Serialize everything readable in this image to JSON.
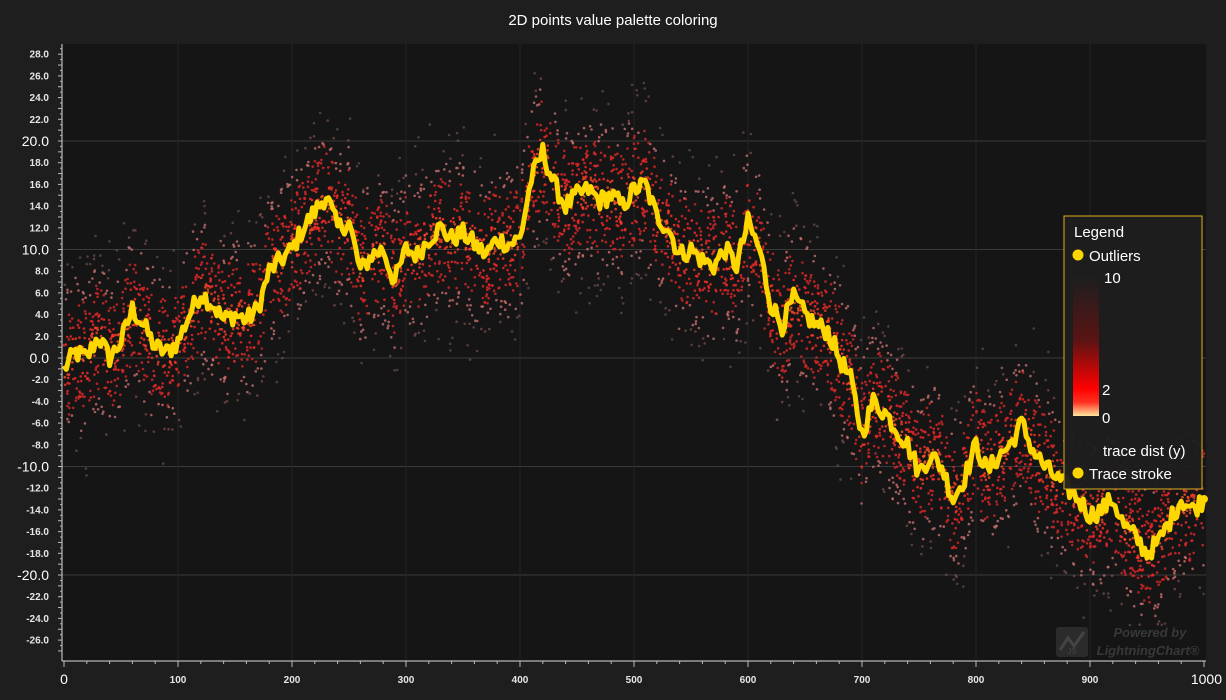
{
  "chart_data": {
    "type": "scatter",
    "title": "2D points value palette coloring",
    "xlim": [
      0,
      1000
    ],
    "ylim": [
      -28,
      29
    ],
    "x_ticks_major": [
      0,
      1000
    ],
    "x_ticks_minor": [
      100,
      200,
      300,
      400,
      500,
      600,
      700,
      800,
      900
    ],
    "y_ticks_major": [
      20.0,
      10.0,
      0.0,
      -10.0,
      -20.0
    ],
    "y_ticks_minor": [
      28.0,
      26.0,
      24.0,
      22.0,
      18.0,
      16.0,
      14.0,
      12.0,
      8.0,
      6.0,
      4.0,
      2.0,
      -2.0,
      -4.0,
      -6.0,
      -8.0,
      -12.0,
      -14.0,
      -16.0,
      -18.0,
      -22.0,
      -24.0,
      -26.0
    ],
    "grid": true,
    "series": [
      {
        "name": "Trace stroke",
        "type": "line",
        "color": "#ffd700",
        "x": [
          0,
          10,
          20,
          30,
          40,
          50,
          60,
          70,
          80,
          90,
          100,
          110,
          120,
          125,
          130,
          140,
          150,
          160,
          170,
          180,
          190,
          200,
          210,
          220,
          230,
          240,
          250,
          260,
          270,
          280,
          290,
          300,
          310,
          320,
          330,
          340,
          350,
          360,
          370,
          380,
          390,
          400,
          410,
          420,
          430,
          440,
          450,
          460,
          470,
          480,
          490,
          500,
          510,
          520,
          530,
          540,
          550,
          560,
          570,
          580,
          590,
          600,
          610,
          620,
          630,
          640,
          650,
          660,
          670,
          680,
          690,
          700,
          710,
          720,
          730,
          740,
          750,
          760,
          770,
          780,
          790,
          800,
          810,
          820,
          830,
          840,
          850,
          860,
          870,
          880,
          890,
          900,
          910,
          920,
          930,
          940,
          950,
          960,
          970,
          980,
          990,
          1000
        ],
        "y": [
          -1.0,
          0.5,
          0.0,
          2.0,
          0.0,
          1.5,
          4.5,
          3.0,
          1.0,
          0.5,
          1.5,
          4.0,
          6.0,
          5.5,
          5.0,
          3.5,
          4.0,
          3.5,
          4.5,
          8.0,
          9.0,
          10.0,
          12.0,
          13.5,
          15.0,
          12.0,
          12.5,
          8.0,
          9.5,
          10.0,
          7.0,
          10.0,
          9.5,
          11.0,
          12.0,
          11.0,
          11.5,
          10.5,
          9.5,
          11.0,
          10.5,
          11.0,
          16.5,
          19.0,
          16.0,
          14.0,
          15.0,
          15.5,
          14.5,
          15.0,
          14.0,
          15.5,
          16.0,
          13.0,
          12.0,
          9.5,
          10.0,
          9.0,
          8.5,
          10.0,
          8.5,
          12.5,
          10.0,
          5.0,
          3.0,
          5.5,
          4.0,
          3.0,
          2.5,
          0.0,
          -2.0,
          -7.0,
          -4.0,
          -5.0,
          -6.5,
          -8.0,
          -10.5,
          -9.0,
          -10.0,
          -13.0,
          -11.0,
          -8.0,
          -10.5,
          -9.0,
          -8.0,
          -6.0,
          -8.5,
          -10.0,
          -11.0,
          -12.0,
          -13.0,
          -14.5,
          -14.0,
          -13.0,
          -15.5,
          -16.5,
          -18.0,
          -17.0,
          -15.0,
          -13.0,
          -14.0,
          -13.0
        ]
      },
      {
        "name": "Outliers",
        "type": "scatter",
        "color": "#ffd700"
      }
    ],
    "colorbar": {
      "label": "trace dist (y)",
      "ticks": [
        10,
        2,
        0
      ],
      "colors": [
        "#ffe6a0",
        "#ff0000",
        "#3c1010",
        "#1e1e1e"
      ]
    },
    "legend": {
      "title": "Legend",
      "placement": "right",
      "entries": [
        "Outliers",
        "Trace stroke"
      ]
    },
    "watermark": {
      "line1": "Powered by",
      "line2": "LightningChart®",
      "badge": "JS"
    }
  }
}
